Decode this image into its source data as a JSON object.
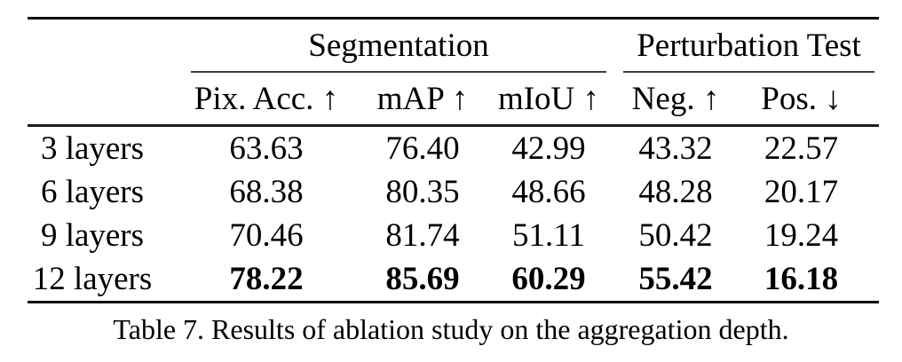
{
  "page": {
    "background": "#ffffff",
    "text_color": "#000000"
  },
  "table": {
    "column_groups": [
      {
        "label": "Segmentation",
        "spans_columns": [
          "Pix. Acc.",
          "mAP",
          "mIoU"
        ]
      },
      {
        "label": "Perturbation Test",
        "spans_columns": [
          "Neg.",
          "Pos."
        ]
      }
    ],
    "columns": [
      "Pix. Acc. ↑",
      "mAP ↑",
      "mIoU ↑",
      "Neg. ↑",
      "Pos. ↓"
    ],
    "rows": [
      {
        "label": "3 layers",
        "values": [
          "63.63",
          "76.40",
          "42.99",
          "43.32",
          "22.57"
        ],
        "bold": false
      },
      {
        "label": "6 layers",
        "values": [
          "68.38",
          "80.35",
          "48.66",
          "48.28",
          "20.17"
        ],
        "bold": false
      },
      {
        "label": "9 layers",
        "values": [
          "70.46",
          "81.74",
          "51.11",
          "50.42",
          "19.24"
        ],
        "bold": false
      },
      {
        "label": "12 layers",
        "values": [
          "78.22",
          "85.69",
          "60.29",
          "55.42",
          "16.18"
        ],
        "bold": true
      }
    ]
  },
  "caption": "Table 7. Results of ablation study on the aggregation depth."
}
